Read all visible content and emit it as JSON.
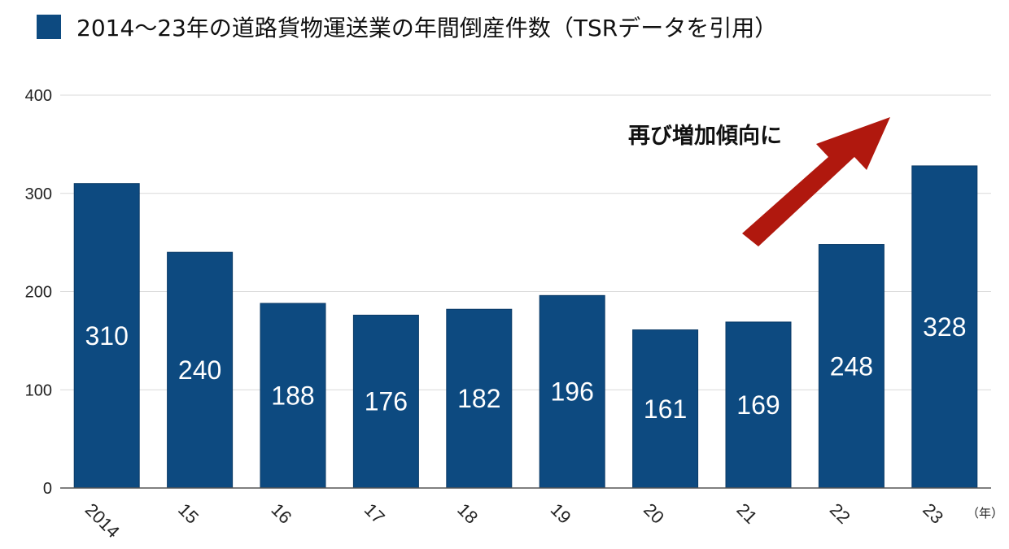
{
  "legend": {
    "label": "2014〜23年の道路貨物運送業の年間倒産件数（TSRデータを引用）",
    "color": "#0d4a80"
  },
  "annotation": {
    "text": "再び増加傾向に",
    "arrow_color": "#b0180e"
  },
  "unit_label": "（年）",
  "chart_data": {
    "type": "bar",
    "title": "",
    "categories": [
      "2014",
      "15",
      "16",
      "17",
      "18",
      "19",
      "20",
      "21",
      "22",
      "23"
    ],
    "series": [
      {
        "name": "2014〜23年の道路貨物運送業の年間倒産件数（TSRデータを引用）",
        "values": [
          310,
          240,
          188,
          176,
          182,
          196,
          161,
          169,
          248,
          328
        ]
      }
    ],
    "ylim": [
      0,
      400
    ],
    "yticks": [
      0,
      100,
      200,
      300,
      400
    ],
    "grid": true,
    "legend_position": "top-left",
    "bar_color": "#0d4a80",
    "data_label_color": "#ffffff"
  }
}
